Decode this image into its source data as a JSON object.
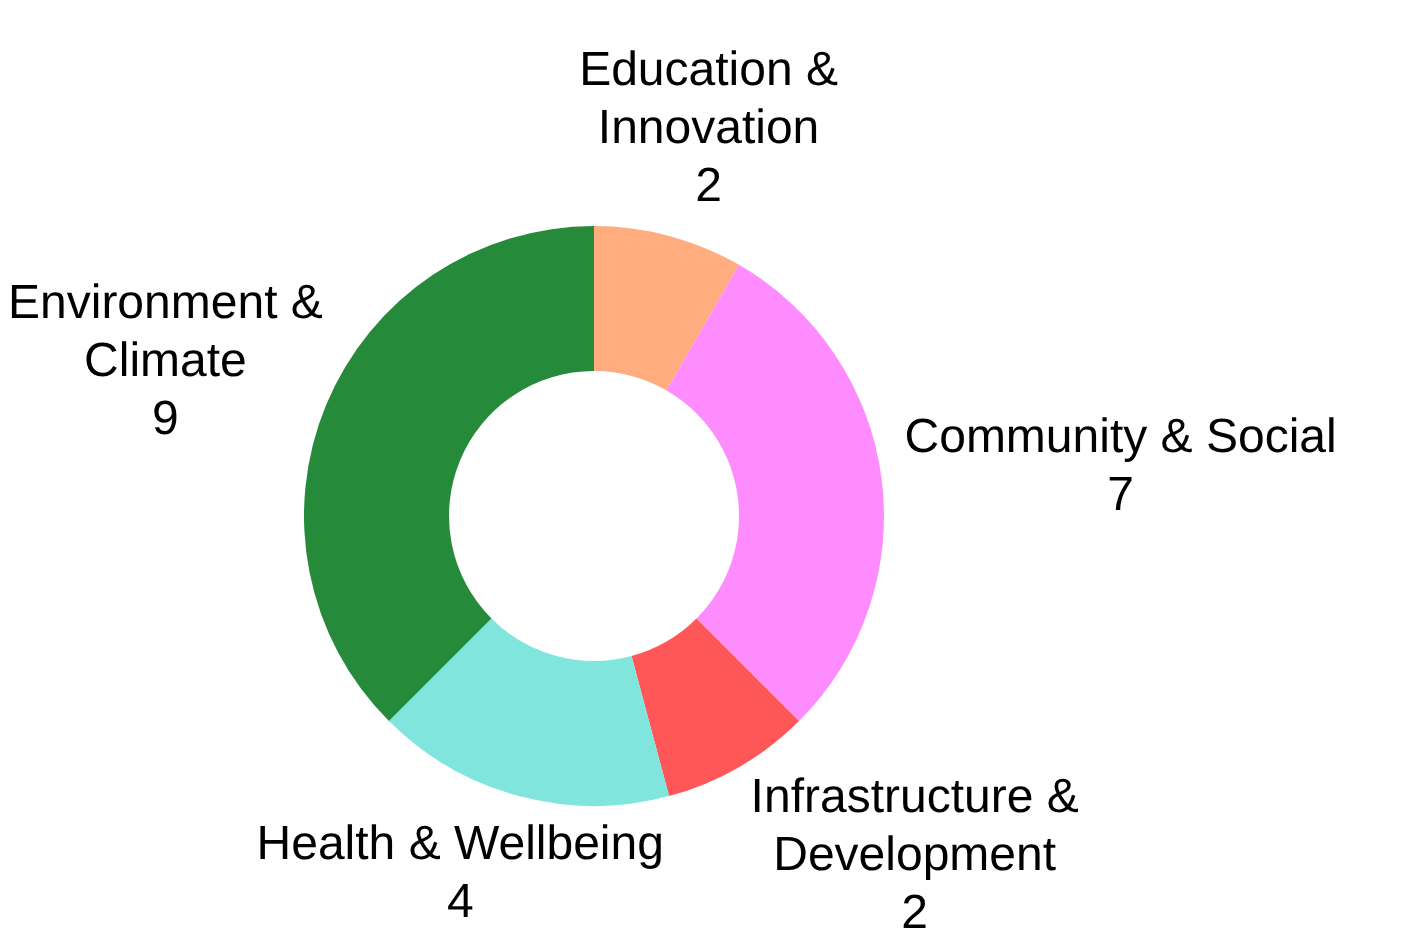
{
  "chart_data": {
    "type": "donut",
    "categories": [
      "Education & Innovation",
      "Community & Social",
      "Infrastructure & Development",
      "Health & Wellbeing",
      "Environment & Climate"
    ],
    "values": [
      2,
      7,
      2,
      4,
      9
    ],
    "colors": [
      "#ffad7f",
      "#ff8cff",
      "#ff5757",
      "#80e6dd",
      "#268a3b"
    ],
    "data_labels": true,
    "legend": false
  }
}
